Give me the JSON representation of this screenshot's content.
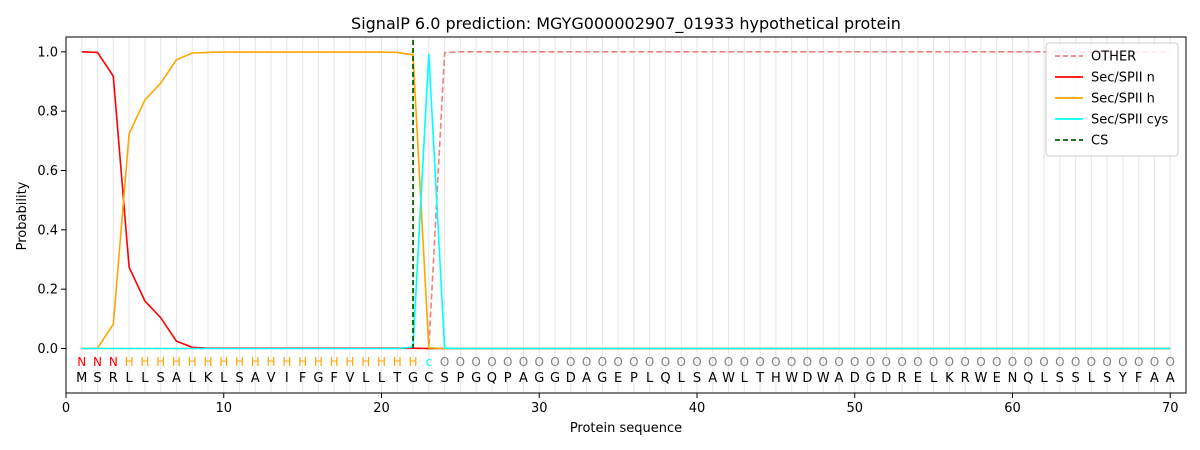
{
  "chart_data": {
    "type": "line",
    "title": "SignalP 6.0 prediction: MGYG000002907_01933 hypothetical protein",
    "xlabel": "Protein sequence",
    "ylabel": "Probability",
    "xlim": [
      0,
      71
    ],
    "ylim": [
      -0.15,
      1.05
    ],
    "xticks": [
      0,
      10,
      20,
      30,
      40,
      50,
      60,
      70
    ],
    "yticks": [
      0.0,
      0.2,
      0.4,
      0.6,
      0.8,
      1.0
    ],
    "xtick_labels": [
      "0",
      "10",
      "20",
      "30",
      "40",
      "50",
      "60",
      "70"
    ],
    "ytick_labels": [
      "0.0",
      "0.2",
      "0.4",
      "0.6",
      "0.8",
      "1.0"
    ],
    "legend_position": "top-right",
    "sequence": [
      "M",
      "S",
      "R",
      "L",
      "L",
      "S",
      "A",
      "L",
      "K",
      "L",
      "S",
      "A",
      "V",
      "I",
      "F",
      "G",
      "F",
      "V",
      "L",
      "L",
      "T",
      "G",
      "C",
      "S",
      "P",
      "G",
      "Q",
      "P",
      "A",
      "G",
      "G",
      "D",
      "A",
      "G",
      "E",
      "P",
      "L",
      "Q",
      "L",
      "S",
      "A",
      "W",
      "L",
      "T",
      "H",
      "W",
      "D",
      "W",
      "A",
      "D",
      "G",
      "D",
      "R",
      "E",
      "L",
      "K",
      "R",
      "W",
      "E",
      "N",
      "Q",
      "L",
      "S",
      "S",
      "L",
      "S",
      "Y",
      "F",
      "A",
      "A"
    ],
    "states": [
      "N",
      "N",
      "N",
      "H",
      "H",
      "H",
      "H",
      "H",
      "H",
      "H",
      "H",
      "H",
      "H",
      "H",
      "H",
      "H",
      "H",
      "H",
      "H",
      "H",
      "H",
      "H",
      "c",
      "O",
      "O",
      "O",
      "O",
      "O",
      "O",
      "O",
      "O",
      "O",
      "O",
      "O",
      "O",
      "O",
      "O",
      "O",
      "O",
      "O",
      "O",
      "O",
      "O",
      "O",
      "O",
      "O",
      "O",
      "O",
      "O",
      "O",
      "O",
      "O",
      "O",
      "O",
      "O",
      "O",
      "O",
      "O",
      "O",
      "O",
      "O",
      "O",
      "O",
      "O",
      "O",
      "O",
      "O",
      "O",
      "O",
      "O"
    ],
    "state_colors": {
      "N": "#ff0000",
      "H": "#ffa500",
      "c": "#00ffff",
      "O": "#808080"
    },
    "cleavage_site": 22,
    "series": [
      {
        "name": "OTHER",
        "color": "#f08080",
        "dash": true,
        "values": [
          0,
          0,
          0,
          0,
          0,
          0,
          0,
          0,
          0,
          0,
          0,
          0,
          0,
          0,
          0,
          0,
          0,
          0,
          0,
          0,
          0,
          0,
          0,
          0.997,
          1,
          1,
          1,
          1,
          1,
          1,
          1,
          1,
          1,
          1,
          1,
          1,
          1,
          1,
          1,
          1,
          1,
          1,
          1,
          1,
          1,
          1,
          1,
          1,
          1,
          1,
          1,
          1,
          1,
          1,
          1,
          1,
          1,
          1,
          1,
          1,
          1,
          1,
          1,
          1,
          1,
          1,
          1,
          1,
          1,
          1
        ]
      },
      {
        "name": "Sec/SPII n",
        "color": "#ff0000",
        "dash": false,
        "values": [
          1.0,
          0.998,
          0.918,
          0.274,
          0.16,
          0.104,
          0.025,
          0.004,
          0.001,
          0.001,
          0.001,
          0.001,
          0.001,
          0.001,
          0.001,
          0.001,
          0.001,
          0.001,
          0.001,
          0.001,
          0.001,
          0.001,
          0,
          0,
          0,
          0,
          0,
          0,
          0,
          0,
          0,
          0,
          0,
          0,
          0,
          0,
          0,
          0,
          0,
          0,
          0,
          0,
          0,
          0,
          0,
          0,
          0,
          0,
          0,
          0,
          0,
          0,
          0,
          0,
          0,
          0,
          0,
          0,
          0,
          0,
          0,
          0,
          0,
          0,
          0,
          0,
          0,
          0,
          0,
          0
        ]
      },
      {
        "name": "Sec/SPII h",
        "color": "#ffa500",
        "dash": false,
        "values": [
          0,
          0.001,
          0.082,
          0.724,
          0.838,
          0.894,
          0.973,
          0.996,
          0.998,
          0.999,
          0.999,
          0.999,
          0.999,
          0.999,
          0.999,
          0.999,
          0.999,
          0.999,
          0.999,
          0.999,
          0.998,
          0.99,
          0.002,
          0,
          0,
          0,
          0,
          0,
          0,
          0,
          0,
          0,
          0,
          0,
          0,
          0,
          0,
          0,
          0,
          0,
          0,
          0,
          0,
          0,
          0,
          0,
          0,
          0,
          0,
          0,
          0,
          0,
          0,
          0,
          0,
          0,
          0,
          0,
          0,
          0,
          0,
          0,
          0,
          0,
          0,
          0,
          0,
          0,
          0,
          0
        ]
      },
      {
        "name": "Sec/SPII cys",
        "color": "#00ffff",
        "dash": false,
        "values": [
          0,
          0,
          0,
          0,
          0,
          0,
          0,
          0,
          0,
          0,
          0,
          0,
          0,
          0,
          0,
          0,
          0,
          0,
          0,
          0,
          0,
          0.005,
          0.993,
          0.001,
          0,
          0,
          0,
          0,
          0,
          0,
          0,
          0,
          0,
          0,
          0,
          0,
          0,
          0,
          0,
          0,
          0,
          0,
          0,
          0,
          0,
          0,
          0,
          0,
          0,
          0,
          0,
          0,
          0,
          0,
          0,
          0,
          0,
          0,
          0,
          0,
          0,
          0,
          0,
          0,
          0,
          0,
          0,
          0,
          0,
          0
        ]
      },
      {
        "name": "CS",
        "color": "#006400",
        "dash": true,
        "values": []
      }
    ]
  }
}
